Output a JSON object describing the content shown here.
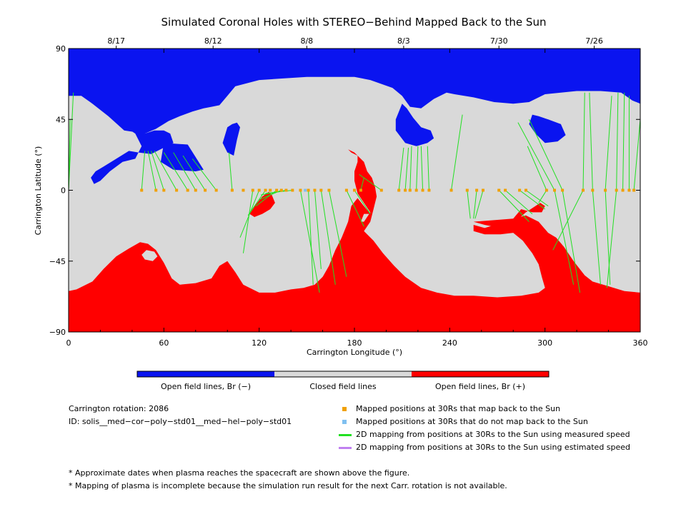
{
  "chart_data": {
    "type": "map",
    "title": "Simulated Coronal Holes with STEREO−Behind Mapped Back to the Sun",
    "xlabel": "Carrington Longitude (°)",
    "ylabel": "Carrington Latitude (°)",
    "xlim": [
      0,
      360
    ],
    "ylim": [
      -90,
      90
    ],
    "x_ticks": [
      0,
      60,
      120,
      180,
      240,
      300,
      360
    ],
    "y_ticks": [
      -90,
      -45,
      0,
      45,
      90
    ],
    "y_tick_labels": [
      "−90",
      "−45",
      "0",
      "45",
      "90"
    ],
    "top_dates": [
      {
        "label": "8/17",
        "lon": 30
      },
      {
        "label": "8/12",
        "lon": 91
      },
      {
        "label": "8/8",
        "lon": 150
      },
      {
        "label": "8/3",
        "lon": 211
      },
      {
        "label": "7/30",
        "lon": 271
      },
      {
        "label": "7/26",
        "lon": 331
      }
    ],
    "colorbar": [
      {
        "label": "Open field lines, Br (−)",
        "color": "#0a14f0"
      },
      {
        "label": "Closed field lines",
        "color": "#d9d9d9"
      },
      {
        "label": "Open field lines, Br (+)",
        "color": "#ff0000"
      }
    ],
    "colors": {
      "negative": "#0a14f0",
      "closed": "#d9d9d9",
      "positive": "#ff0000",
      "mapped": "#f0a000",
      "unmapped": "#80c0f0",
      "measured": "#22e022",
      "estimated": "#c080f0"
    },
    "mapped_positions_lon": [
      46,
      55,
      60,
      68,
      75,
      80,
      86,
      93,
      103,
      110,
      116,
      120,
      124,
      127,
      131,
      134,
      137,
      141,
      146,
      151,
      155,
      159,
      164,
      175,
      180,
      184,
      197,
      208,
      212,
      215,
      219,
      223,
      227,
      241,
      251,
      257,
      261,
      271,
      275,
      284,
      288,
      301,
      306,
      311,
      324,
      330,
      338,
      345,
      349,
      353,
      356
    ],
    "unmapped_positions_lon": [
      149
    ],
    "mapping_lines": [
      [
        0,
        0,
        1,
        45
      ],
      [
        0,
        0,
        3,
        62
      ],
      [
        46,
        0,
        48,
        25
      ],
      [
        55,
        0,
        50,
        25
      ],
      [
        60,
        0,
        52,
        25
      ],
      [
        68,
        0,
        54,
        25
      ],
      [
        75,
        0,
        60,
        24
      ],
      [
        80,
        0,
        66,
        24
      ],
      [
        86,
        0,
        72,
        22
      ],
      [
        93,
        0,
        78,
        20
      ],
      [
        103,
        0,
        101,
        24
      ],
      [
        116,
        0,
        110,
        -40
      ],
      [
        120,
        0,
        108,
        -30
      ],
      [
        124,
        0,
        113,
        -16
      ],
      [
        131,
        0,
        118,
        -10
      ],
      [
        134,
        0,
        120,
        -6
      ],
      [
        137,
        0,
        121,
        -3
      ],
      [
        141,
        0,
        124,
        -2
      ],
      [
        146,
        0,
        158,
        -65
      ],
      [
        151,
        0,
        154,
        -60
      ],
      [
        155,
        0,
        159,
        -50
      ],
      [
        159,
        0,
        168,
        -60
      ],
      [
        164,
        0,
        175,
        -55
      ],
      [
        175,
        0,
        186,
        -23
      ],
      [
        180,
        0,
        190,
        -15
      ],
      [
        184,
        0,
        186,
        8
      ],
      [
        197,
        0,
        183,
        10
      ],
      [
        208,
        0,
        211,
        27
      ],
      [
        212,
        0,
        214,
        27
      ],
      [
        215,
        0,
        216,
        28
      ],
      [
        219,
        0,
        220,
        28
      ],
      [
        223,
        0,
        222,
        28
      ],
      [
        227,
        0,
        226,
        28
      ],
      [
        241,
        0,
        248,
        48
      ],
      [
        251,
        0,
        253,
        -18
      ],
      [
        257,
        0,
        255,
        -18
      ],
      [
        261,
        0,
        256,
        -18
      ],
      [
        271,
        0,
        290,
        -20
      ],
      [
        275,
        0,
        292,
        -15
      ],
      [
        284,
        0,
        300,
        -12
      ],
      [
        288,
        0,
        302,
        -10
      ],
      [
        301,
        0,
        296,
        -8
      ],
      [
        306,
        0,
        318,
        -60
      ],
      [
        311,
        0,
        322,
        -65
      ],
      [
        324,
        0,
        305,
        -38
      ],
      [
        330,
        0,
        335,
        -60
      ],
      [
        338,
        0,
        341,
        -60
      ],
      [
        345,
        0,
        339,
        -62
      ],
      [
        301,
        0,
        289,
        28
      ],
      [
        306,
        0,
        283,
        43
      ],
      [
        311,
        0,
        290,
        45
      ],
      [
        324,
        0,
        325,
        62
      ],
      [
        330,
        0,
        328,
        62
      ],
      [
        338,
        0,
        342,
        60
      ],
      [
        345,
        0,
        346,
        62
      ],
      [
        349,
        0,
        350,
        62
      ],
      [
        353,
        0,
        353,
        60
      ],
      [
        356,
        0,
        360,
        45
      ]
    ]
  },
  "info": {
    "rotation_label": "Carrington rotation: 2086",
    "id_label": "ID: solis__med−cor−poly−std01__med−hel−poly−std01"
  },
  "legend": [
    {
      "label": "Mapped positions at 30Rs that map back to the Sun",
      "symbol": "square",
      "color": "#f0a000"
    },
    {
      "label": "Mapped positions at 30Rs that do not map back to the Sun",
      "symbol": "square",
      "color": "#80c0f0"
    },
    {
      "label": "2D mapping from positions at 30Rs to the Sun using measured speed",
      "symbol": "line",
      "color": "#22e022"
    },
    {
      "label": "2D mapping from positions at 30Rs to the Sun using estimated speed",
      "symbol": "line",
      "color": "#c080f0"
    }
  ],
  "notes": [
    "* Approximate dates when plasma reaches the spacecraft are shown above the figure.",
    "* Mapping of plasma is incomplete because the simulation run result for the next Carr. rotation is not available."
  ]
}
